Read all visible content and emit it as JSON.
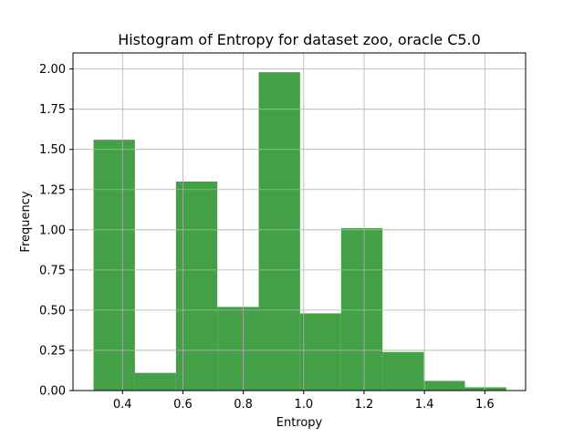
{
  "chart_data": {
    "type": "bar",
    "title": "Histogram of Entropy for dataset zoo, oracle C5.0",
    "xlabel": "Entropy",
    "ylabel": "Frequency",
    "xlim": [
      0.236,
      1.735
    ],
    "ylim": [
      0.0,
      2.1
    ],
    "xticks": [
      "0.4",
      "0.6",
      "0.8",
      "1.0",
      "1.2",
      "1.4",
      "1.6"
    ],
    "xtick_values": [
      0.4,
      0.6,
      0.8,
      1.0,
      1.2,
      1.4,
      1.6
    ],
    "yticks": [
      "0.00",
      "0.25",
      "0.50",
      "0.75",
      "1.00",
      "1.25",
      "1.50",
      "1.75",
      "2.00"
    ],
    "ytick_values": [
      0.0,
      0.25,
      0.5,
      0.75,
      1.0,
      1.25,
      1.5,
      1.75,
      2.0
    ],
    "grid": true,
    "bar_color": "#43a047",
    "bin_edges": [
      0.304,
      0.441,
      0.577,
      0.714,
      0.851,
      0.988,
      1.124,
      1.261,
      1.398,
      1.534,
      1.671
    ],
    "values": [
      1.56,
      0.11,
      1.3,
      0.52,
      1.98,
      0.48,
      1.01,
      0.24,
      0.06,
      0.02
    ]
  }
}
